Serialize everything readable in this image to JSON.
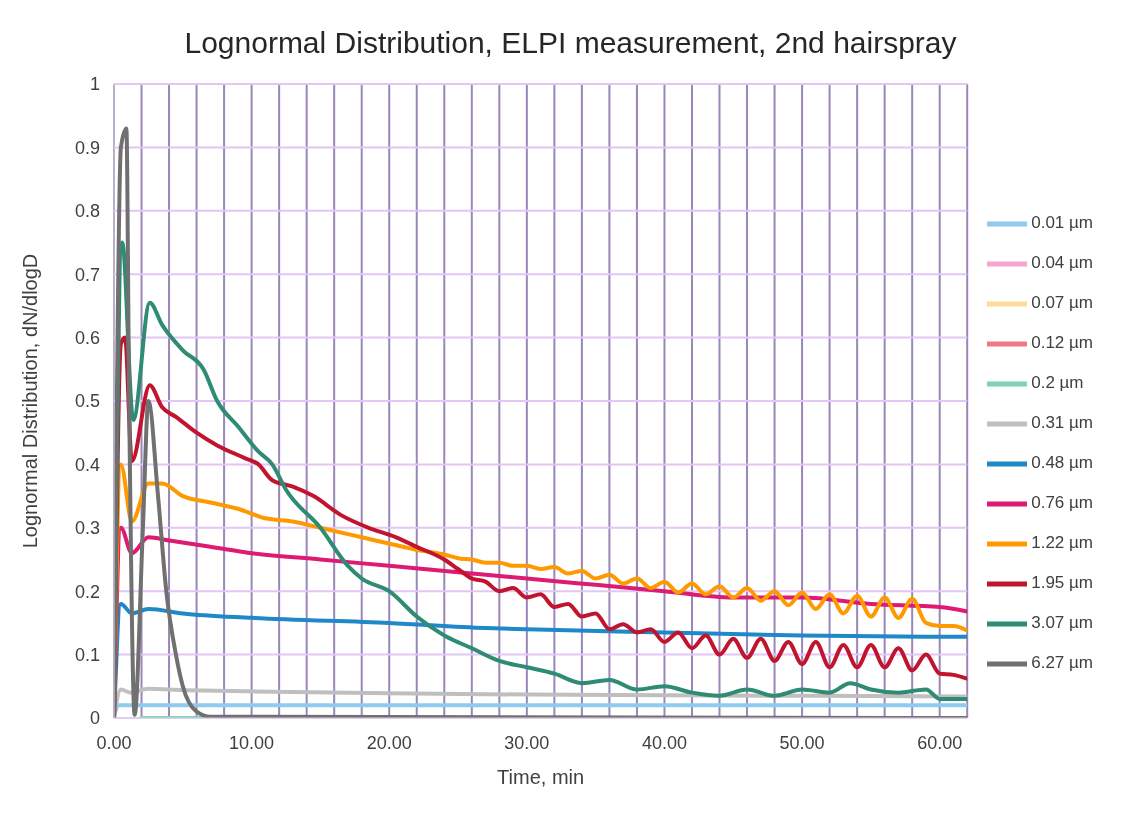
{
  "chart_data": {
    "type": "line",
    "title": "Lognormal Distribution, ELPI measurement, 2nd hairspray",
    "xlabel": "Time, min",
    "ylabel": "Lognormal Distribution, dN/dlogD",
    "xlim": [
      0,
      62
    ],
    "ylim": [
      0,
      1
    ],
    "xticks": [
      {
        "value": 0,
        "label": "0.00"
      },
      {
        "value": 2,
        "label": null
      },
      {
        "value": 4,
        "label": null
      },
      {
        "value": 6,
        "label": null
      },
      {
        "value": 8,
        "label": null
      },
      {
        "value": 10,
        "label": "10.00"
      },
      {
        "value": 12,
        "label": null
      },
      {
        "value": 14,
        "label": null
      },
      {
        "value": 16,
        "label": null
      },
      {
        "value": 18,
        "label": null
      },
      {
        "value": 20,
        "label": "20.00"
      },
      {
        "value": 22,
        "label": null
      },
      {
        "value": 24,
        "label": null
      },
      {
        "value": 26,
        "label": null
      },
      {
        "value": 28,
        "label": null
      },
      {
        "value": 30,
        "label": "30.00"
      },
      {
        "value": 32,
        "label": null
      },
      {
        "value": 34,
        "label": null
      },
      {
        "value": 36,
        "label": null
      },
      {
        "value": 38,
        "label": null
      },
      {
        "value": 40,
        "label": "40.00"
      },
      {
        "value": 42,
        "label": null
      },
      {
        "value": 44,
        "label": null
      },
      {
        "value": 46,
        "label": null
      },
      {
        "value": 48,
        "label": null
      },
      {
        "value": 50,
        "label": "50.00"
      },
      {
        "value": 52,
        "label": null
      },
      {
        "value": 54,
        "label": null
      },
      {
        "value": 56,
        "label": null
      },
      {
        "value": 58,
        "label": null
      },
      {
        "value": 60,
        "label": "60.00"
      },
      {
        "value": 62,
        "label": null
      }
    ],
    "yticks": [
      0,
      0.1,
      0.2,
      0.3,
      0.4,
      0.5,
      0.6,
      0.7,
      0.8,
      0.9,
      1
    ],
    "grid": true,
    "legend": "right",
    "marker": "none",
    "line_style": "solid",
    "series": [
      {
        "name": "0.01 µm",
        "color": "#8ecbee",
        "x": [
          0,
          0.3,
          62
        ],
        "values": [
          0,
          0.02,
          0.02
        ]
      },
      {
        "name": "0.04 µm",
        "color": "#f4a6cf"
      },
      {
        "name": "0.07 µm",
        "color": "#fdd99b"
      },
      {
        "name": "0.12 µm",
        "color": "#ec7a84"
      },
      {
        "name": "0.2 µm",
        "color": "#7ed1bb",
        "x": [
          2,
          6.5
        ],
        "values": [
          0,
          0
        ]
      },
      {
        "name": "0.31 µm",
        "color": "#bfbfbf",
        "x": [
          0,
          0.5,
          1.2,
          2.5,
          5,
          10,
          20,
          30,
          40,
          50,
          62
        ],
        "values": [
          0,
          0.045,
          0.04,
          0.046,
          0.044,
          0.042,
          0.039,
          0.037,
          0.036,
          0.035,
          0.034
        ]
      },
      {
        "name": "0.48 µm",
        "color": "#1f88c9",
        "x": [
          0,
          0.5,
          1.3,
          2.5,
          5,
          10,
          20,
          27,
          30,
          40,
          50,
          62
        ],
        "values": [
          0,
          0.18,
          0.165,
          0.172,
          0.165,
          0.158,
          0.15,
          0.142,
          0.14,
          0.135,
          0.13,
          0.128
        ]
      },
      {
        "name": "0.76 µm",
        "color": "#de1a72",
        "x": [
          0,
          0.5,
          1.3,
          2.5,
          4,
          7,
          10,
          15,
          20,
          25,
          30,
          35,
          40,
          45,
          50,
          55,
          60,
          62
        ],
        "values": [
          0,
          0.3,
          0.26,
          0.285,
          0.28,
          0.27,
          0.26,
          0.25,
          0.24,
          0.23,
          0.22,
          0.21,
          0.2,
          0.19,
          0.19,
          0.18,
          0.175,
          0.168
        ]
      },
      {
        "name": "1.22 µm",
        "color": "#ff9900",
        "x": [
          0,
          0.5,
          1.3,
          2.5,
          3.5,
          5,
          7,
          9,
          11,
          13,
          15,
          17,
          19,
          21,
          22,
          23,
          24,
          25,
          26,
          27,
          28,
          29,
          30,
          31,
          32,
          33,
          34,
          35,
          36,
          37,
          38,
          39,
          40,
          41,
          42,
          43,
          44,
          45,
          46,
          47,
          48,
          49,
          50,
          51,
          52,
          53,
          54,
          55,
          56,
          57,
          58,
          59,
          60,
          61,
          62
        ],
        "values": [
          0,
          0.4,
          0.31,
          0.37,
          0.37,
          0.35,
          0.34,
          0.33,
          0.315,
          0.31,
          0.3,
          0.29,
          0.28,
          0.27,
          0.265,
          0.262,
          0.258,
          0.252,
          0.25,
          0.245,
          0.245,
          0.24,
          0.24,
          0.235,
          0.238,
          0.228,
          0.232,
          0.22,
          0.226,
          0.212,
          0.22,
          0.205,
          0.215,
          0.198,
          0.212,
          0.195,
          0.208,
          0.19,
          0.205,
          0.185,
          0.2,
          0.178,
          0.198,
          0.172,
          0.195,
          0.165,
          0.193,
          0.16,
          0.19,
          0.158,
          0.188,
          0.15,
          0.145,
          0.145,
          0.138
        ]
      },
      {
        "name": "1.95 µm",
        "color": "#c0142f",
        "x": [
          0,
          0.5,
          0.8,
          1.3,
          2.6,
          3.5,
          4.5,
          6,
          7.5,
          9.5,
          10.5,
          11.5,
          13,
          14.5,
          16.5,
          18.5,
          20.5,
          22,
          24,
          25,
          26,
          27,
          28,
          29,
          30,
          31,
          32,
          33,
          34,
          35,
          36,
          37,
          38,
          39,
          40,
          41,
          42,
          43,
          44,
          45,
          46,
          47,
          48,
          49,
          50,
          51,
          52,
          53,
          54,
          55,
          56,
          57,
          58,
          59,
          60,
          61,
          62
        ],
        "values": [
          0,
          0.59,
          0.6,
          0.405,
          0.525,
          0.49,
          0.475,
          0.45,
          0.43,
          0.41,
          0.4,
          0.375,
          0.365,
          0.35,
          0.32,
          0.3,
          0.285,
          0.27,
          0.25,
          0.235,
          0.22,
          0.215,
          0.2,
          0.205,
          0.19,
          0.195,
          0.175,
          0.18,
          0.16,
          0.165,
          0.14,
          0.148,
          0.135,
          0.14,
          0.12,
          0.135,
          0.11,
          0.13,
          0.1,
          0.125,
          0.095,
          0.125,
          0.09,
          0.12,
          0.085,
          0.12,
          0.08,
          0.115,
          0.08,
          0.115,
          0.08,
          0.11,
          0.075,
          0.1,
          0.07,
          0.068,
          0.062
        ]
      },
      {
        "name": "3.07 µm",
        "color": "#2e8b74",
        "x": [
          0,
          0.6,
          1.4,
          2.6,
          3.5,
          5,
          6.5,
          7.5,
          9,
          10.5,
          11.5,
          12.5,
          15,
          17,
          18,
          20,
          22,
          24,
          26,
          28,
          30,
          32,
          34,
          36,
          38,
          40,
          42,
          44,
          46,
          48,
          50,
          52,
          53.5,
          55,
          57,
          59,
          60,
          62
        ],
        "values": [
          0,
          0.75,
          0.47,
          0.655,
          0.62,
          0.58,
          0.55,
          0.5,
          0.46,
          0.42,
          0.4,
          0.36,
          0.3,
          0.24,
          0.22,
          0.2,
          0.16,
          0.13,
          0.11,
          0.09,
          0.08,
          0.07,
          0.055,
          0.06,
          0.045,
          0.05,
          0.04,
          0.035,
          0.045,
          0.035,
          0.045,
          0.04,
          0.055,
          0.045,
          0.04,
          0.045,
          0.03,
          0.03
        ]
      },
      {
        "name": "6.27 µm",
        "color": "#707070",
        "x": [
          0,
          0.5,
          0.9,
          1.1,
          1.5,
          2.1,
          2.5,
          3.2,
          3.8,
          4.5,
          5,
          6,
          7,
          62
        ],
        "values": [
          0,
          0.9,
          0.93,
          0.5,
          0.005,
          0.3,
          0.5,
          0.35,
          0.2,
          0.1,
          0.05,
          0.01,
          0.002,
          0
        ]
      }
    ]
  }
}
